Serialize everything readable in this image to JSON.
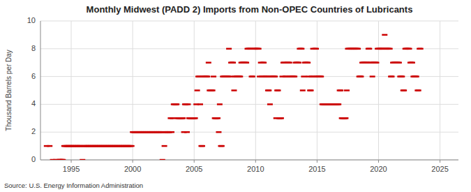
{
  "chart_data": {
    "type": "scatter",
    "title": "Monthly Midwest (PADD 2) Imports from Non-OPEC Countries of Lubricants",
    "ylabel": "Thousand Barrels per Day",
    "annotations": [
      "Source: U.S. Energy Information Administration"
    ],
    "color": "#cc0000",
    "marker": "hline",
    "grid": true,
    "xlim": [
      1992.5,
      2026.5
    ],
    "ylim": [
      0,
      10
    ],
    "xticks": [
      1995,
      2000,
      2005,
      2010,
      2015,
      2020,
      2025
    ],
    "yticks": [
      0,
      2,
      4,
      6,
      8,
      10
    ],
    "x": [
      1993.0,
      1993.25,
      1993.5,
      1993.75,
      1994.0,
      1994.08,
      1994.17,
      1994.25,
      1994.33,
      1994.42,
      1994.5,
      1994.58,
      1994.67,
      1994.75,
      1994.83,
      1994.92,
      1995.0,
      1995.08,
      1995.17,
      1995.25,
      1995.33,
      1995.42,
      1995.5,
      1995.58,
      1995.67,
      1995.75,
      1995.83,
      1995.92,
      1996.0,
      1996.08,
      1996.17,
      1996.25,
      1996.33,
      1996.42,
      1996.5,
      1996.58,
      1996.67,
      1996.75,
      1996.83,
      1996.92,
      1997.0,
      1997.08,
      1997.17,
      1997.25,
      1997.33,
      1997.42,
      1997.5,
      1997.58,
      1997.67,
      1997.75,
      1997.83,
      1997.92,
      1998.0,
      1998.08,
      1998.17,
      1998.25,
      1998.33,
      1998.42,
      1998.5,
      1998.58,
      1998.67,
      1998.75,
      1998.83,
      1998.92,
      1999.0,
      1999.08,
      1999.17,
      1999.25,
      1999.33,
      1999.42,
      1999.5,
      1999.58,
      1999.67,
      1999.75,
      1999.83,
      1999.92,
      2000.0,
      2000.08,
      2000.17,
      2000.25,
      2000.33,
      2000.42,
      2000.5,
      2000.58,
      2000.67,
      2000.75,
      2000.83,
      2000.92,
      2001.0,
      2001.08,
      2001.17,
      2001.25,
      2001.33,
      2001.42,
      2001.5,
      2001.58,
      2001.67,
      2001.75,
      2001.83,
      2001.92,
      2002.0,
      2002.08,
      2002.17,
      2002.25,
      2002.33,
      2002.42,
      2002.5,
      2002.58,
      2002.67,
      2002.75,
      2002.83,
      2002.92,
      2003.0,
      2003.08,
      2003.17,
      2003.25,
      2003.33,
      2003.42,
      2003.5,
      2003.58,
      2003.67,
      2003.75,
      2003.83,
      2003.92,
      2004.0,
      2004.08,
      2004.17,
      2004.25,
      2004.33,
      2004.42,
      2004.5,
      2004.58,
      2004.67,
      2004.75,
      2004.83,
      2004.92,
      2005.0,
      2005.08,
      2005.17,
      2005.25,
      2005.33,
      2005.42,
      2005.5,
      2005.58,
      2005.67,
      2005.75,
      2005.83,
      2005.92,
      2006.0,
      2006.08,
      2006.17,
      2006.25,
      2006.33,
      2006.42,
      2006.5,
      2006.58,
      2006.67,
      2006.75,
      2006.83,
      2006.92,
      2007.0,
      2007.08,
      2007.17,
      2007.25,
      2007.33,
      2007.42,
      2007.5,
      2007.58,
      2007.67,
      2007.75,
      2007.83,
      2007.92,
      2008.0,
      2008.08,
      2008.17,
      2008.25,
      2008.33,
      2008.42,
      2008.5,
      2008.58,
      2008.67,
      2008.75,
      2008.83,
      2008.92,
      2009.0,
      2009.08,
      2009.17,
      2009.25,
      2009.33,
      2009.42,
      2009.5,
      2009.58,
      2009.67,
      2009.75,
      2009.83,
      2009.92,
      2010.0,
      2010.08,
      2010.17,
      2010.25,
      2010.33,
      2010.42,
      2010.5,
      2010.58,
      2010.67,
      2010.75,
      2010.83,
      2010.92,
      2011.0,
      2011.08,
      2011.17,
      2011.25,
      2011.33,
      2011.42,
      2011.5,
      2011.58,
      2011.67,
      2011.75,
      2011.83,
      2011.92,
      2012.0,
      2012.08,
      2012.17,
      2012.25,
      2012.33,
      2012.42,
      2012.5,
      2012.58,
      2012.67,
      2012.75,
      2012.83,
      2012.92,
      2013.0,
      2013.08,
      2013.17,
      2013.25,
      2013.33,
      2013.42,
      2013.5,
      2013.58,
      2013.67,
      2013.75,
      2013.83,
      2013.92,
      2014.0,
      2014.08,
      2014.17,
      2014.25,
      2014.33,
      2014.42,
      2014.5,
      2014.58,
      2014.67,
      2014.75,
      2014.83,
      2014.92,
      2015.0,
      2015.08,
      2015.17,
      2015.25,
      2015.33,
      2015.42,
      2015.5,
      2015.58,
      2015.67,
      2015.75,
      2015.83,
      2015.92,
      2016.0,
      2016.08,
      2016.17,
      2016.25,
      2016.33,
      2016.42,
      2016.5,
      2016.58,
      2016.67,
      2016.75,
      2016.83,
      2016.92,
      2017.0,
      2017.08,
      2017.17,
      2017.25,
      2017.33,
      2017.42,
      2017.5,
      2017.58,
      2017.67,
      2017.75,
      2017.83,
      2017.92,
      2018.0,
      2018.08,
      2018.17,
      2018.25,
      2018.33,
      2018.42,
      2018.5,
      2018.58,
      2018.67,
      2018.75,
      2018.83,
      2018.92,
      2019.0,
      2019.08,
      2019.17,
      2019.25,
      2019.33,
      2019.42,
      2019.5,
      2019.58,
      2019.67,
      2019.75,
      2019.83,
      2019.92,
      2020.0,
      2020.08,
      2020.17,
      2020.25,
      2020.33,
      2020.42,
      2020.5,
      2020.58,
      2020.67,
      2020.75,
      2020.83,
      2020.92,
      2021.0,
      2021.08,
      2021.17,
      2021.25,
      2021.33,
      2021.42,
      2021.5,
      2021.58,
      2021.67,
      2021.75,
      2021.83,
      2021.92,
      2022.0,
      2022.08,
      2022.17,
      2022.25,
      2022.33,
      2022.42,
      2022.5,
      2022.58,
      2022.67,
      2022.75,
      2022.83,
      2022.92,
      2023.0,
      2023.08,
      2023.17,
      2023.25,
      2023.33,
      2023.42
    ],
    "values": [
      1,
      1,
      0,
      0,
      0,
      0,
      0,
      0,
      0,
      1,
      1,
      1,
      1,
      1,
      1,
      1,
      1,
      1,
      1,
      1,
      1,
      1,
      1,
      1,
      1,
      1,
      1,
      0,
      1,
      1,
      1,
      1,
      1,
      1,
      1,
      1,
      1,
      1,
      1,
      1,
      1,
      1,
      1,
      1,
      1,
      1,
      1,
      1,
      1,
      1,
      1,
      1,
      1,
      1,
      1,
      1,
      1,
      1,
      1,
      1,
      1,
      1,
      1,
      1,
      1,
      1,
      1,
      1,
      1,
      1,
      1,
      1,
      1,
      1,
      1,
      1,
      2,
      2,
      2,
      2,
      2,
      2,
      2,
      2,
      2,
      2,
      2,
      2,
      2,
      2,
      2,
      2,
      2,
      2,
      2,
      2,
      2,
      2,
      2,
      2,
      2,
      2,
      2,
      2,
      2,
      0,
      2,
      1,
      2,
      2,
      2,
      2,
      2,
      3,
      2,
      3,
      4,
      4,
      4,
      4,
      3,
      3,
      3,
      3,
      3,
      3,
      2,
      4,
      4,
      2,
      4,
      3,
      3,
      3,
      3,
      3,
      3,
      3,
      4,
      5,
      6,
      6,
      4,
      1,
      1,
      6,
      6,
      6,
      6,
      6,
      7,
      5,
      5,
      5,
      5,
      6,
      3,
      3,
      3,
      3,
      2,
      4,
      1,
      1,
      6,
      6,
      6,
      6,
      6,
      6,
      8,
      6,
      7,
      7,
      7,
      5,
      6,
      6,
      6,
      6,
      6,
      6,
      7,
      7,
      7,
      7,
      7,
      7,
      8,
      8,
      8,
      8,
      6,
      6,
      8,
      8,
      8,
      8,
      8,
      8,
      6,
      7,
      6,
      7,
      7,
      6,
      6,
      6,
      5,
      5,
      4,
      6,
      6,
      6,
      6,
      6,
      3,
      5,
      5,
      3,
      3,
      3,
      6,
      7,
      7,
      6,
      6,
      7,
      7,
      7,
      6,
      6,
      6,
      6,
      6,
      7,
      7,
      7,
      7,
      8,
      8,
      8,
      5,
      6,
      7,
      7,
      7,
      7,
      6,
      5,
      5,
      6,
      8,
      6,
      8,
      8,
      6,
      6,
      6,
      6,
      6,
      4,
      4,
      4,
      4,
      4,
      4,
      4,
      4,
      4,
      4,
      4,
      4,
      4,
      4,
      4,
      4,
      4,
      5,
      5,
      3,
      3,
      3,
      3,
      3,
      5,
      8,
      8,
      8,
      8,
      8,
      8,
      8,
      8,
      8,
      8,
      8,
      6,
      6,
      6,
      7,
      7,
      7,
      7,
      7,
      7,
      8,
      8,
      7,
      7,
      6,
      7,
      7,
      7,
      7,
      8,
      8,
      8,
      8,
      8,
      8,
      8,
      9,
      8,
      8,
      8,
      8,
      8,
      6,
      6,
      7,
      7,
      7,
      7,
      7,
      7,
      7,
      6,
      6,
      6,
      5,
      5,
      8,
      8,
      8,
      8,
      8,
      7,
      7,
      7,
      6,
      6,
      6,
      6,
      5,
      5,
      8,
      8
    ]
  }
}
